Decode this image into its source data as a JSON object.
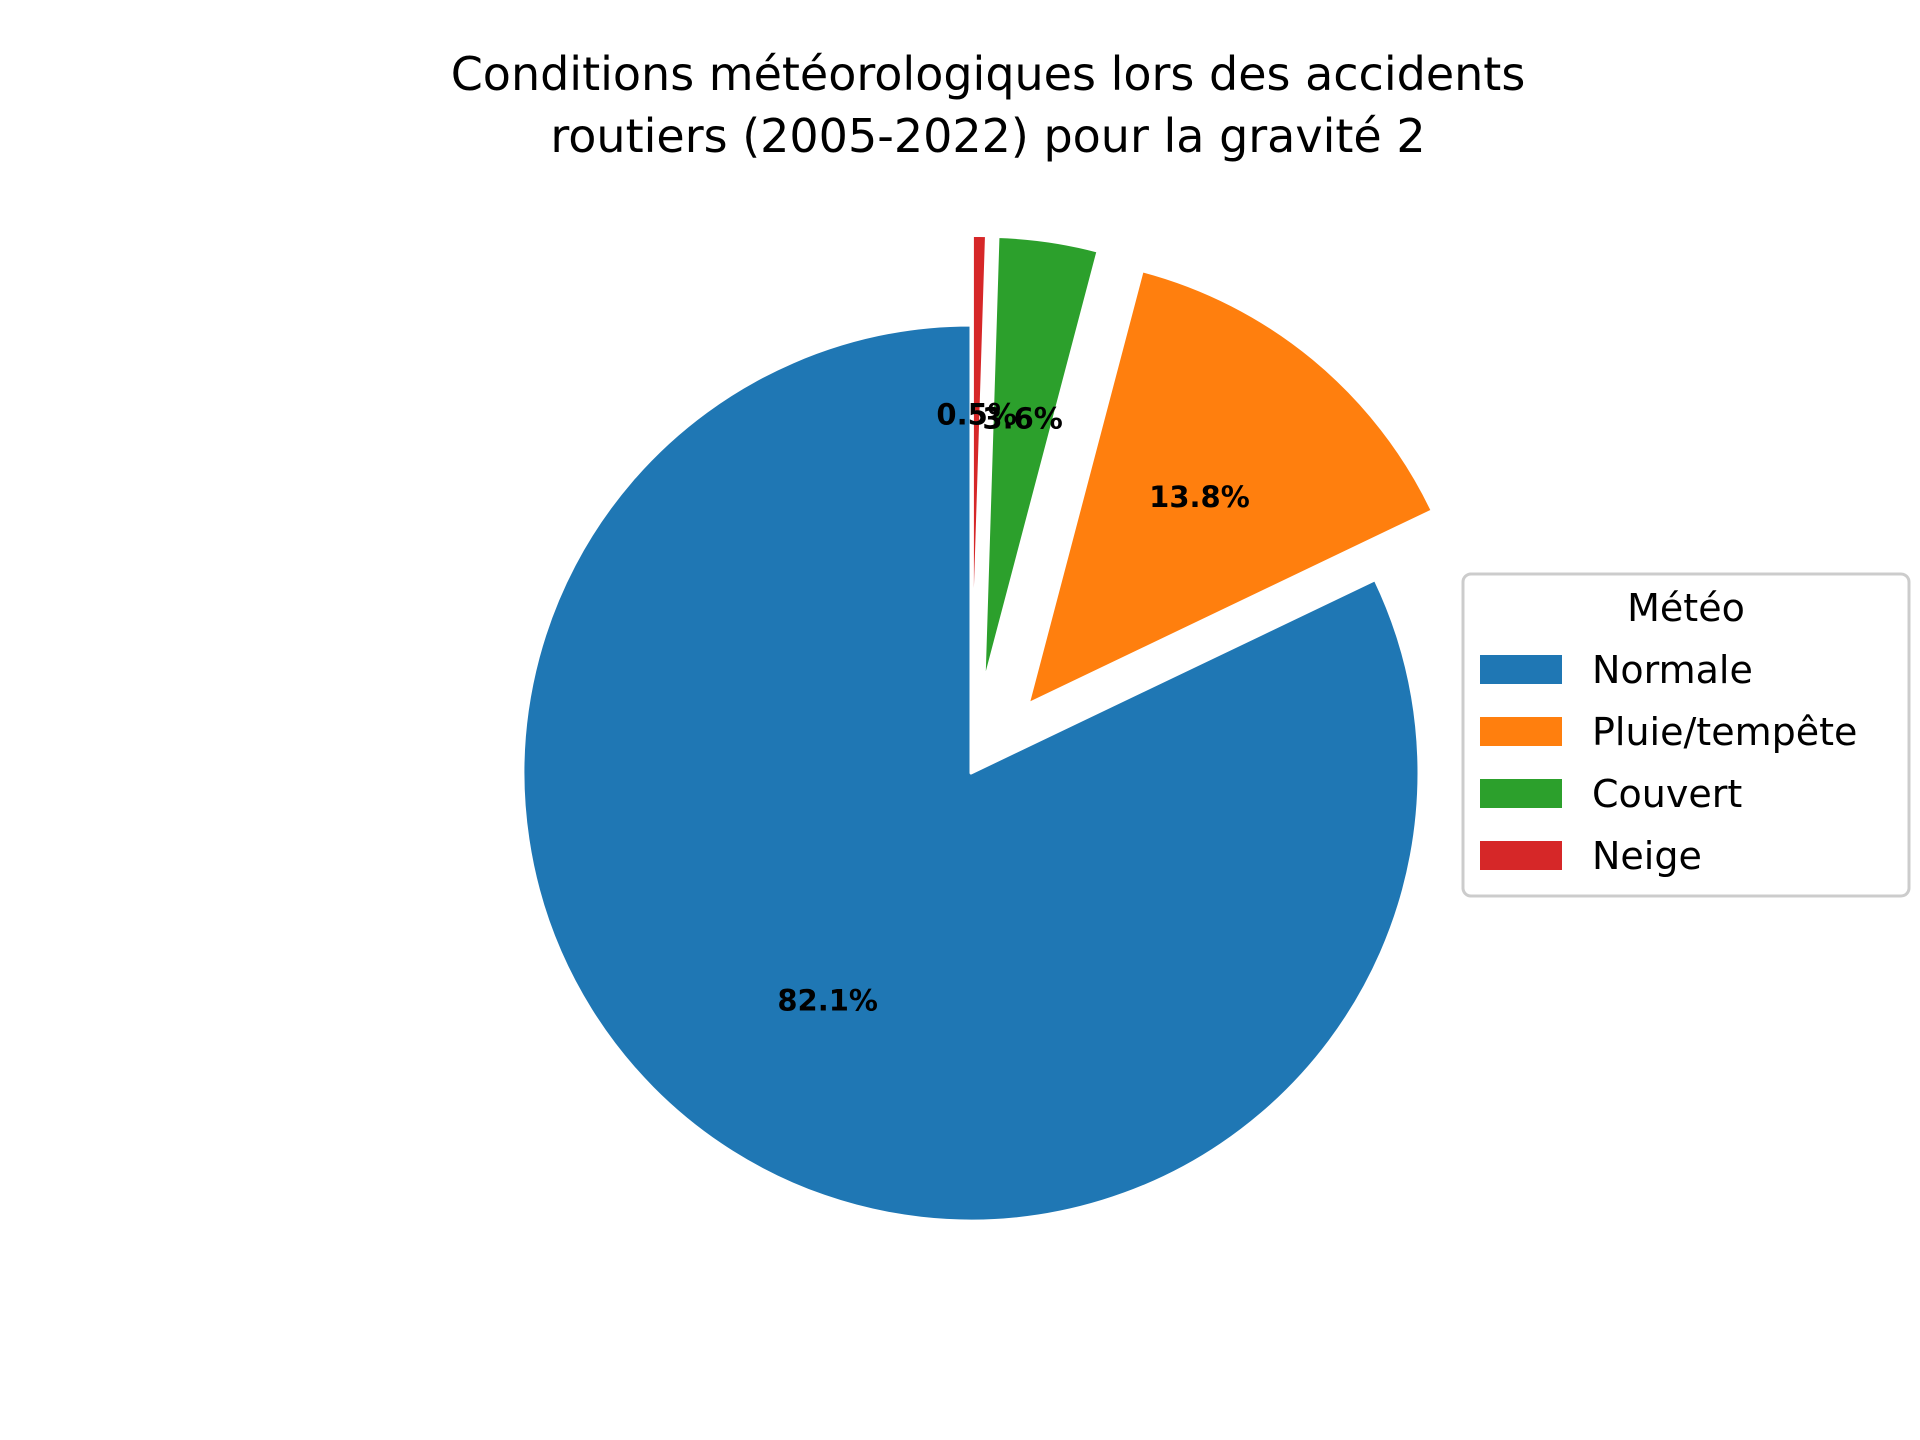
{
  "chart_data": {
    "type": "pie",
    "title_lines": [
      "Conditions météorologiques lors des accidents",
      "routiers (2005-2022) pour la gravité 2"
    ],
    "categories": [
      "Normale",
      "Pluie/tempête",
      "Couvert",
      "Neige"
    ],
    "values": [
      82.1,
      13.8,
      3.6,
      0.5
    ],
    "labels": [
      "82.1%",
      "13.8%",
      "3.6%",
      "0.5%"
    ],
    "colors": [
      "#1f77b4",
      "#ff7f0e",
      "#2ca02c",
      "#d62728"
    ],
    "exploded": [
      false,
      true,
      true,
      true
    ],
    "start_angle_deg": 90,
    "direction": "counterclockwise",
    "legend": {
      "title": "Météo",
      "entries": [
        "Normale",
        "Pluie/tempête",
        "Couvert",
        "Neige"
      ],
      "placement": "right"
    }
  }
}
